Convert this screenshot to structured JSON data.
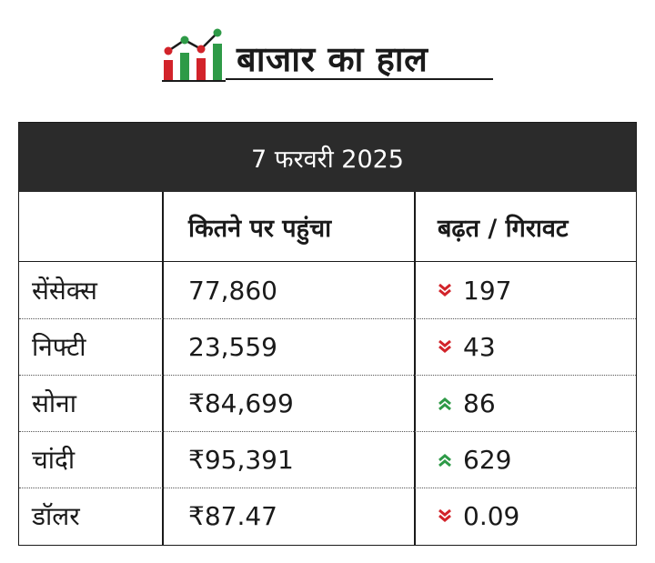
{
  "header": {
    "title": "बाजार का हाल",
    "logo_icon": "market-chart-icon"
  },
  "table": {
    "date_heading": "7 फरवरी 2025",
    "columns": [
      "",
      "कितने पर पहुंचा",
      "बढ़त / गिरावट"
    ],
    "rows": [
      {
        "name": "सेंसेक्स",
        "value": "77,860",
        "direction": "down",
        "change": "197"
      },
      {
        "name": "निफ्टी",
        "value": "23,559",
        "direction": "down",
        "change": "43"
      },
      {
        "name": "सोना",
        "value": "₹84,699",
        "direction": "up",
        "change": "86"
      },
      {
        "name": "चांदी",
        "value": "₹95,391",
        "direction": "up",
        "change": "629"
      },
      {
        "name": "डॉलर",
        "value": "₹87.47",
        "direction": "down",
        "change": "0.09"
      }
    ]
  },
  "colors": {
    "up": "#2e9a47",
    "down": "#d2232a",
    "header_bg": "#2b2b2b",
    "logo_red": "#d2232a",
    "logo_green": "#2e9a47"
  }
}
